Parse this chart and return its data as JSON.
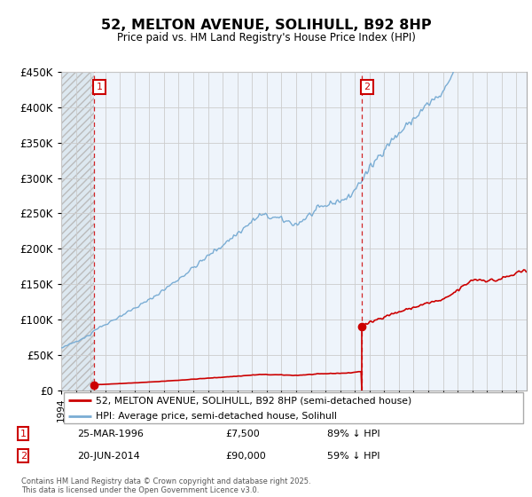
{
  "title": "52, MELTON AVENUE, SOLIHULL, B92 8HP",
  "subtitle": "Price paid vs. HM Land Registry's House Price Index (HPI)",
  "hpi_label": "HPI: Average price, semi-detached house, Solihull",
  "price_label": "52, MELTON AVENUE, SOLIHULL, B92 8HP (semi-detached house)",
  "transaction1": {
    "date": "25-MAR-1996",
    "price": 7500,
    "hpi_pct": "89% ↓ HPI",
    "year": 1996.23
  },
  "transaction2": {
    "date": "20-JUN-2014",
    "price": 90000,
    "hpi_pct": "59% ↓ HPI",
    "year": 2014.47
  },
  "hpi_color": "#7aadd4",
  "price_color": "#cc0000",
  "ylim": [
    0,
    450000
  ],
  "xlim_start": 1994.0,
  "xlim_end": 2025.7,
  "footnote": "Contains HM Land Registry data © Crown copyright and database right 2025.\nThis data is licensed under the Open Government Licence v3.0.",
  "grid_color": "#cccccc",
  "hatch_color": "#bbbbbb",
  "plot_bg_color": "#eef4fb",
  "hatch_bg_color": "#dde8f0"
}
